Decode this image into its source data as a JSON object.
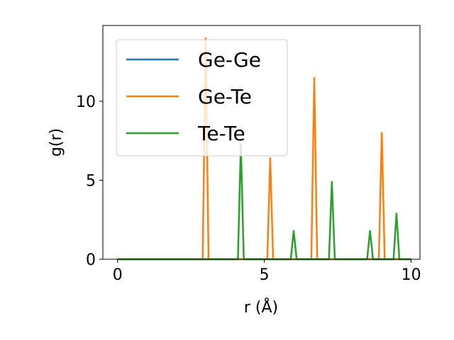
{
  "chart_data": {
    "type": "line",
    "xlabel": "r (Å)",
    "ylabel": "g(r)",
    "xlim": [
      -0.5,
      10.3
    ],
    "ylim": [
      0,
      14.8
    ],
    "xticks": [
      0,
      5,
      10
    ],
    "yticks": [
      0,
      5,
      10
    ],
    "grid": false,
    "legend_position": "upper left",
    "series": [
      {
        "name": "Ge-Ge",
        "color": "#1f77b4",
        "points": [
          [
            0,
            0
          ],
          [
            10,
            0
          ]
        ]
      },
      {
        "name": "Ge-Te",
        "color": "#ff7f0e",
        "points": [
          [
            0,
            0
          ],
          [
            2.9,
            0
          ],
          [
            3.0,
            14.0
          ],
          [
            3.1,
            0
          ],
          [
            5.1,
            0
          ],
          [
            5.2,
            6.4
          ],
          [
            5.3,
            0
          ],
          [
            6.6,
            0
          ],
          [
            6.7,
            11.5
          ],
          [
            6.8,
            0
          ],
          [
            8.9,
            0
          ],
          [
            9.0,
            8.0
          ],
          [
            9.1,
            0
          ],
          [
            10,
            0
          ]
        ]
      },
      {
        "name": "Te-Te",
        "color": "#2ca02c",
        "points": [
          [
            0,
            0
          ],
          [
            4.1,
            0
          ],
          [
            4.2,
            7.3
          ],
          [
            4.3,
            0
          ],
          [
            5.9,
            0
          ],
          [
            6.0,
            1.8
          ],
          [
            6.1,
            0
          ],
          [
            7.2,
            0
          ],
          [
            7.3,
            4.9
          ],
          [
            7.4,
            0
          ],
          [
            8.5,
            0
          ],
          [
            8.6,
            1.8
          ],
          [
            8.7,
            0
          ],
          [
            9.4,
            0
          ],
          [
            9.5,
            2.9
          ],
          [
            9.6,
            0
          ],
          [
            10,
            0
          ]
        ]
      }
    ]
  }
}
